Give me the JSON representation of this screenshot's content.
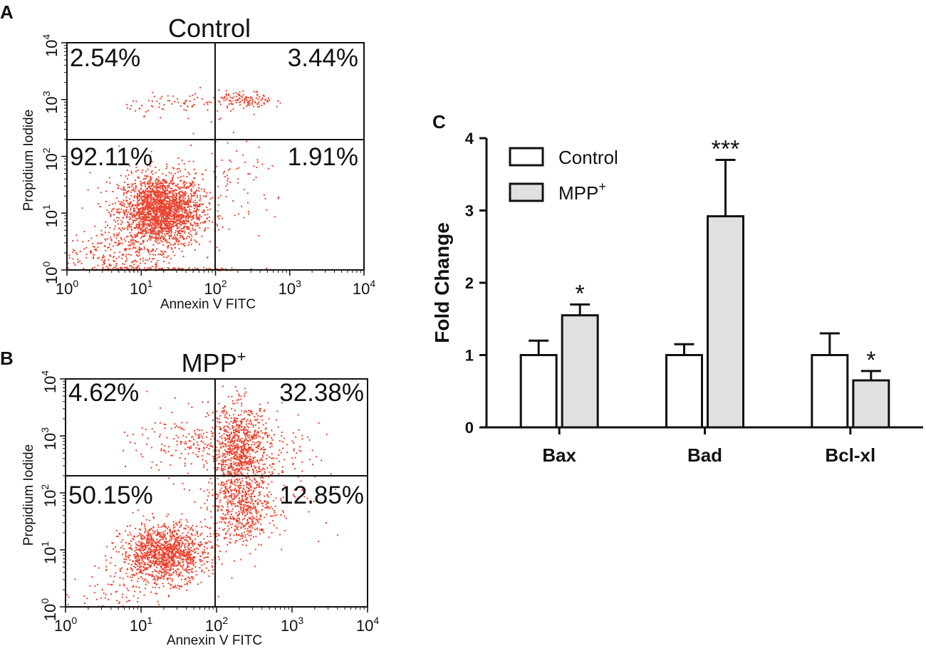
{
  "panels": {
    "a": {
      "letter": "A",
      "title": "Control",
      "xlabel": "Annexin V FITC",
      "ylabel": "Propidium Iodide",
      "quadrants": {
        "upper_left": "2.54%",
        "upper_right": "3.44%",
        "lower_left": "92.11%",
        "lower_right": "1.91%"
      }
    },
    "b": {
      "letter": "B",
      "title_main": "MPP",
      "title_sup": "+",
      "xlabel": "Annexin V FITC",
      "ylabel": "Propidium Iodide",
      "quadrants": {
        "upper_left": "4.62%",
        "upper_right": "32.38%",
        "lower_left": "50.15%",
        "lower_right": "12.85%"
      }
    },
    "c": {
      "letter": "C"
    }
  },
  "log_ticks": {
    "base": "10",
    "exponents": [
      "0",
      "1",
      "2",
      "3",
      "4"
    ]
  },
  "chart_data": [
    {
      "type": "scatter",
      "panel": "A",
      "title": "Control",
      "xlabel": "Annexin V FITC",
      "ylabel": "Propidium Iodide",
      "xscale": "log",
      "yscale": "log",
      "xlim": [
        1,
        10000
      ],
      "ylim": [
        1,
        10000
      ],
      "gate": {
        "x": 100,
        "y": 100
      },
      "quadrant_percent": {
        "upper_left": 2.54,
        "upper_right": 3.44,
        "lower_left": 92.11,
        "lower_right": 1.91
      },
      "point_color": "#e8432e"
    },
    {
      "type": "scatter",
      "panel": "B",
      "title": "MPP+",
      "xlabel": "Annexin V FITC",
      "ylabel": "Propidium Iodide",
      "xscale": "log",
      "yscale": "log",
      "xlim": [
        1,
        10000
      ],
      "ylim": [
        1,
        10000
      ],
      "gate": {
        "x": 100,
        "y": 100
      },
      "quadrant_percent": {
        "upper_left": 4.62,
        "upper_right": 32.38,
        "lower_left": 50.15,
        "lower_right": 12.85
      },
      "point_color": "#e8432e"
    },
    {
      "type": "bar",
      "panel": "C",
      "ylabel": "Fold Change",
      "ylim": [
        0,
        4
      ],
      "yticks": [
        "0",
        "1",
        "2",
        "3",
        "4"
      ],
      "categories": [
        "Bax",
        "Bad",
        "Bcl-xl"
      ],
      "series": [
        {
          "name": "Control",
          "values": [
            1.0,
            1.0,
            1.0
          ],
          "errors": [
            0.2,
            0.15,
            0.3
          ],
          "color": "#ffffff"
        },
        {
          "name": "MPP+",
          "name_main": "MPP",
          "name_sup": "+",
          "values": [
            1.55,
            2.92,
            0.65
          ],
          "errors": [
            0.15,
            0.78,
            0.13
          ],
          "color": "#e0e0e0"
        }
      ],
      "significance": [
        "*",
        "***",
        "*"
      ]
    }
  ]
}
